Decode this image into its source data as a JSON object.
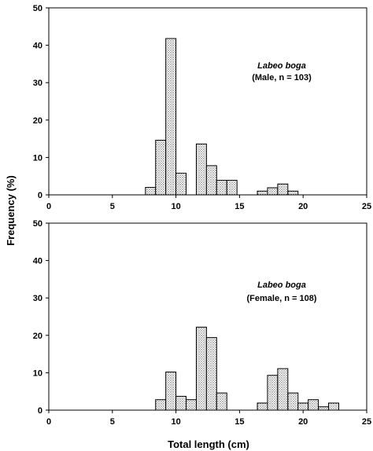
{
  "figure": {
    "ylabel": "Frequency (%)",
    "xlabel": "Total length (cm)"
  },
  "chart_data": [
    {
      "type": "bar",
      "annotation": {
        "species": "Labeo boga",
        "group": "(Male, n = 103)"
      },
      "xlim": [
        0,
        25
      ],
      "ylim": [
        0,
        50
      ],
      "xticks": [
        0,
        5,
        10,
        15,
        20,
        25
      ],
      "yticks": [
        0,
        10,
        20,
        30,
        40,
        50
      ],
      "bin_width": 0.8,
      "bins": [
        {
          "x": 7.6,
          "y": 2
        },
        {
          "x": 8.4,
          "y": 14.6
        },
        {
          "x": 9.2,
          "y": 41.8
        },
        {
          "x": 10.0,
          "y": 5.8
        },
        {
          "x": 11.6,
          "y": 13.6
        },
        {
          "x": 12.4,
          "y": 7.8
        },
        {
          "x": 13.2,
          "y": 3.9
        },
        {
          "x": 14.0,
          "y": 3.9
        },
        {
          "x": 16.4,
          "y": 1
        },
        {
          "x": 17.2,
          "y": 1.9
        },
        {
          "x": 18.0,
          "y": 2.9
        },
        {
          "x": 18.8,
          "y": 1
        }
      ]
    },
    {
      "type": "bar",
      "annotation": {
        "species": "Labeo boga",
        "group": "(Female, n = 108)"
      },
      "xlim": [
        0,
        25
      ],
      "ylim": [
        0,
        50
      ],
      "xticks": [
        0,
        5,
        10,
        15,
        20,
        25
      ],
      "yticks": [
        0,
        10,
        20,
        30,
        40,
        50
      ],
      "bin_width": 0.8,
      "bins": [
        {
          "x": 8.4,
          "y": 2.8
        },
        {
          "x": 9.2,
          "y": 10.2
        },
        {
          "x": 10.0,
          "y": 3.7
        },
        {
          "x": 10.8,
          "y": 2.8
        },
        {
          "x": 11.6,
          "y": 22.2
        },
        {
          "x": 12.4,
          "y": 19.4
        },
        {
          "x": 13.2,
          "y": 4.6
        },
        {
          "x": 16.4,
          "y": 1.9
        },
        {
          "x": 17.2,
          "y": 9.3
        },
        {
          "x": 18.0,
          "y": 11.1
        },
        {
          "x": 18.8,
          "y": 4.6
        },
        {
          "x": 19.6,
          "y": 1.9
        },
        {
          "x": 20.4,
          "y": 2.8
        },
        {
          "x": 21.2,
          "y": 0.9
        },
        {
          "x": 22.0,
          "y": 1.9
        }
      ]
    }
  ]
}
